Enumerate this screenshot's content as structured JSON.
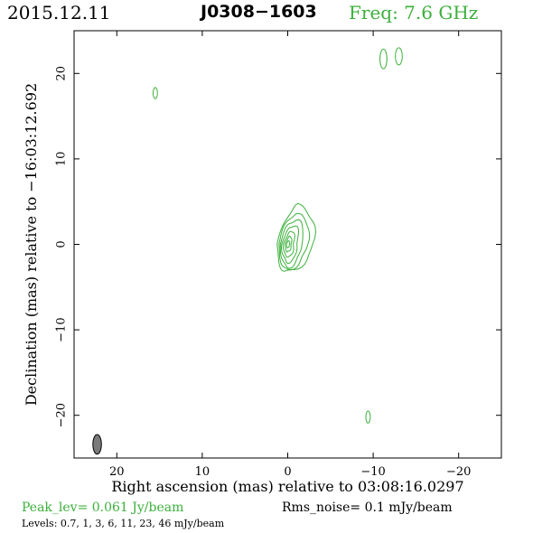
{
  "header": {
    "date": "2015.12.11",
    "source": "J0308−1603",
    "freq": "Freq: 7.6 GHz"
  },
  "colors": {
    "freq_text": "#3cb03c",
    "contour": "#3cb03c",
    "beam_fill": "#7a7a7a",
    "axes": "#000000"
  },
  "chart_data": {
    "type": "contour",
    "xlabel": "Right ascension (mas) relative to 03:08:16.0297",
    "ylabel": "Declination (mas) relative to −16:03:12.692",
    "xlim": [
      25,
      -25
    ],
    "ylim": [
      -25,
      25
    ],
    "xticks": [
      20,
      10,
      0,
      -10,
      -20
    ],
    "yticks": [
      20,
      10,
      0,
      -10,
      -20
    ],
    "xtick_labels": [
      "20",
      "10",
      "0",
      "−10",
      "−20"
    ],
    "ytick_labels": [
      "20",
      "10",
      "0",
      "−10",
      "−20"
    ],
    "core": {
      "center": [
        0,
        0
      ],
      "levels": [
        {
          "dx_left": 1.3,
          "dx_right": 2.8,
          "dy_down": 3.2,
          "dy_up": 4.5
        },
        {
          "dx_left": 1.1,
          "dx_right": 2.2,
          "dy_down": 2.9,
          "dy_up": 3.6
        },
        {
          "dx_left": 0.9,
          "dx_right": 1.6,
          "dy_down": 2.6,
          "dy_up": 2.9
        },
        {
          "dx_left": 0.7,
          "dx_right": 1.1,
          "dy_down": 2.1,
          "dy_up": 2.2
        },
        {
          "dx_left": 0.5,
          "dx_right": 0.7,
          "dy_down": 1.5,
          "dy_up": 1.5
        },
        {
          "dx_left": 0.3,
          "dx_right": 0.4,
          "dy_down": 0.9,
          "dy_up": 0.9
        },
        {
          "dx_left": 0.15,
          "dx_right": 0.2,
          "dy_down": 0.4,
          "dy_up": 0.4
        }
      ]
    },
    "blobs": [
      {
        "x": 15.5,
        "y": 17.7,
        "rx": 0.15,
        "ry": 0.65
      },
      {
        "x": -11.2,
        "y": 21.7,
        "rx": 0.3,
        "ry": 1.15
      },
      {
        "x": -13.0,
        "y": 22.0,
        "rx": 0.3,
        "ry": 1.0
      },
      {
        "x": -9.4,
        "y": -20.2,
        "rx": 0.15,
        "ry": 0.7
      }
    ],
    "beam": {
      "x": 22.3,
      "y": -23.4,
      "major": 2.3,
      "minor": 1.0,
      "pa": 0
    },
    "peak": "Peak_lev=  0.061 Jy/beam",
    "rms": "Rms_noise=   0.1 mJy/beam",
    "levels": "Levels: 0.7,   1,   3,   6,  11,  23,  46 mJy/beam"
  }
}
